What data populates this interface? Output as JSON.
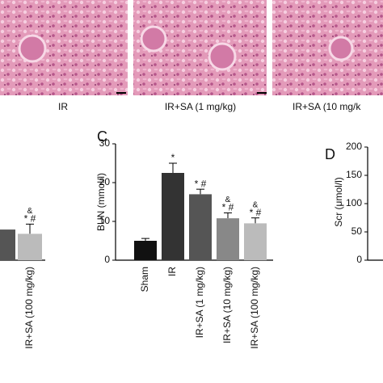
{
  "top_images": {
    "labels": [
      "IR",
      "IR+SA (1 mg/kg)",
      "IR+SA (10 mg/k"
    ]
  },
  "chart_data": [
    {
      "type": "bar",
      "categories": [
        null,
        "IR+SA (100 mg/kg)"
      ],
      "values": [
        7.9,
        6.8
      ],
      "errors": [
        null,
        2.5
      ],
      "colors": [
        "#555555",
        "#bbbbbb"
      ],
      "annotations": [
        [],
        [
          "&",
          "* #"
        ]
      ],
      "ylim": [
        0,
        30
      ]
    },
    {
      "type": "bar",
      "panel": "C",
      "ylabel": "BUN (mmol/l)",
      "categories": [
        "Sham",
        "IR",
        "IR+SA (1 mg/kg)",
        "IR+SA (10 mg/kg)",
        "IR+SA (100 mg/kg)"
      ],
      "values": [
        5,
        22.5,
        17,
        10.8,
        9.5
      ],
      "errors": [
        0.6,
        2.5,
        1.3,
        1.4,
        1.4
      ],
      "colors": [
        "#111111",
        "#333333",
        "#555555",
        "#888888",
        "#bbbbbb"
      ],
      "annotations": [
        [],
        [
          "*"
        ],
        [
          "* #"
        ],
        [
          "&",
          "* #"
        ],
        [
          "&",
          "* #"
        ]
      ],
      "ylim": [
        0,
        30
      ],
      "yticks": [
        0,
        10,
        20,
        30
      ]
    },
    {
      "type": "bar",
      "panel": "D",
      "ylabel": "Scr (μmol/l)",
      "categories": [],
      "values": [],
      "ylim": [
        0,
        200
      ],
      "yticks": [
        0,
        50,
        100,
        150,
        200
      ]
    }
  ]
}
